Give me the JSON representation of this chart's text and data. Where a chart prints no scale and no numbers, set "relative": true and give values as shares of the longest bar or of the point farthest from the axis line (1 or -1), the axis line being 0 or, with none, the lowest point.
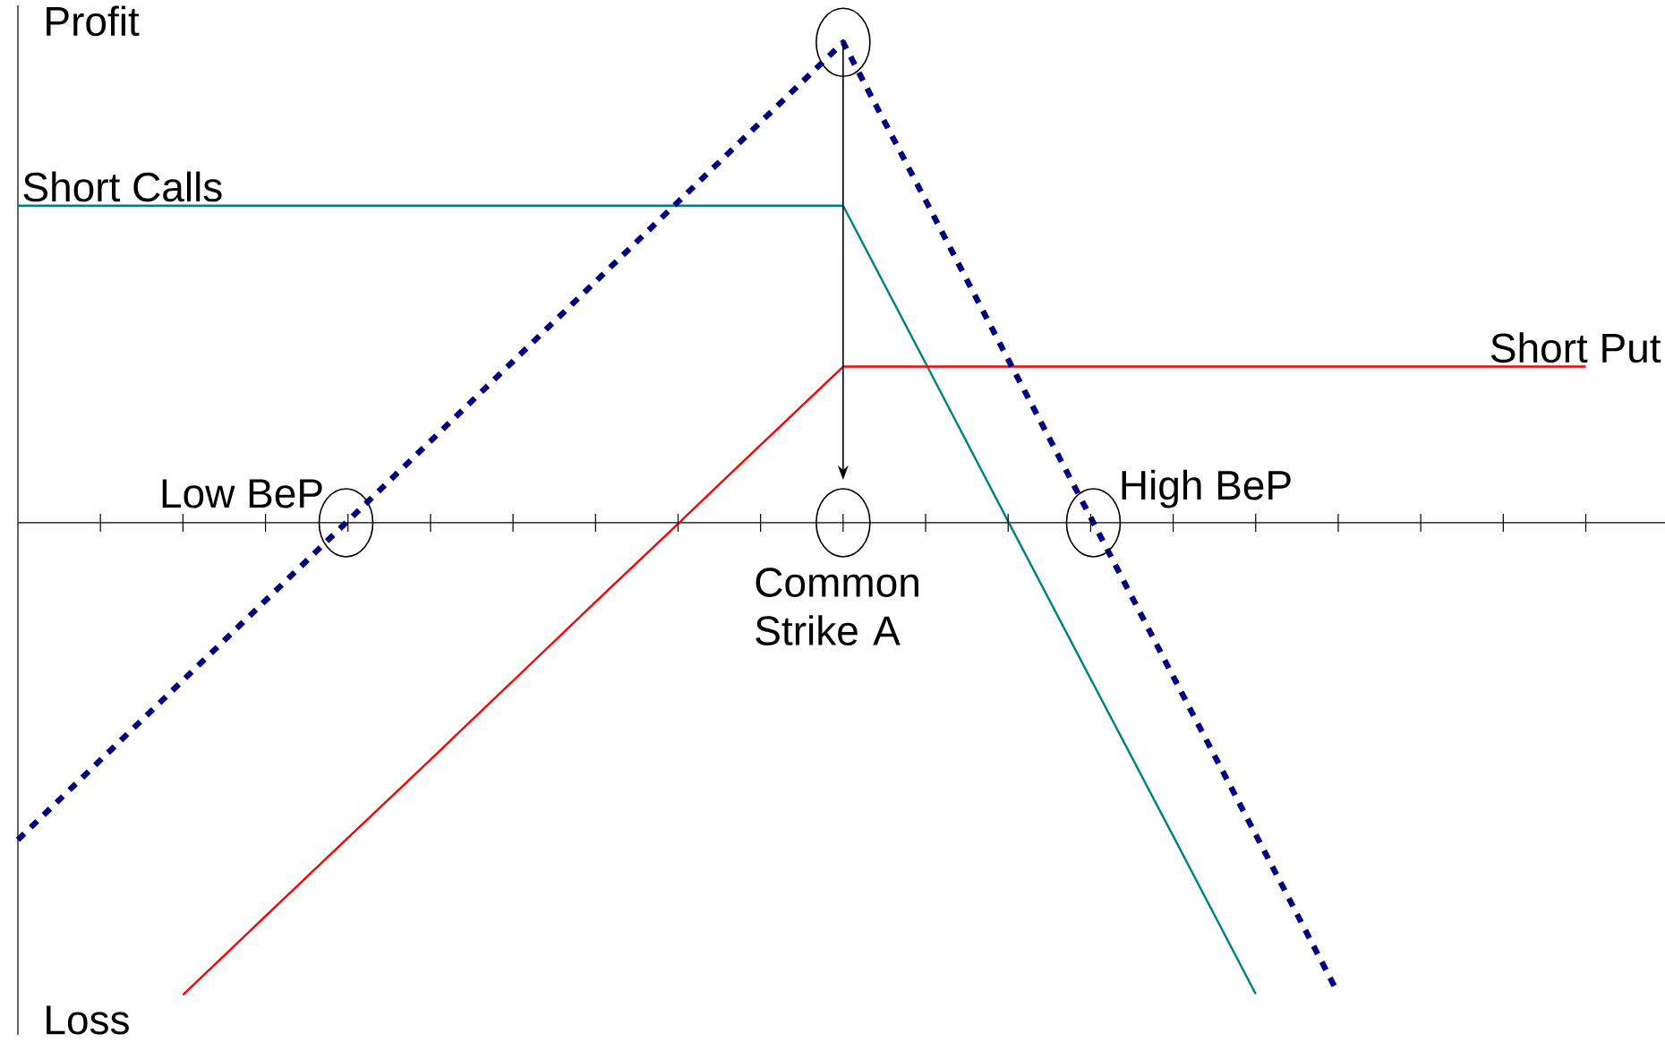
{
  "chart_data": {
    "type": "line",
    "relative": true,
    "categories": [
      null,
      null,
      null,
      null,
      null,
      null,
      null,
      null,
      null,
      null,
      null,
      null,
      null,
      null,
      null,
      null,
      null,
      null,
      null,
      null
    ],
    "series": [
      {
        "name": "Short Calls",
        "color": "#008080",
        "values": [
          0.66,
          0.66,
          0.66,
          0.66,
          0.66,
          0.66,
          0.66,
          0.66,
          0.66,
          0.66,
          0.66,
          0.332,
          0.003,
          -0.325,
          -0.652,
          -0.981,
          null,
          null,
          null,
          null
        ]
      },
      {
        "name": "Short Put",
        "color": "#ff0000",
        "values": [
          null,
          null,
          -0.983,
          -0.819,
          -0.656,
          -0.493,
          -0.329,
          -0.165,
          -0.002,
          0.162,
          0.325,
          0.325,
          0.325,
          0.325,
          0.325,
          0.325,
          0.325,
          0.325,
          0.325,
          0.325
        ]
      },
      {
        "color": "#000080",
        "line_style": "dashed",
        "values": [
          -0.66,
          -0.494,
          -0.328,
          -0.162,
          0.004,
          0.17,
          0.336,
          0.502,
          0.668,
          0.834,
          1,
          0.671,
          0.34,
          0.011,
          -0.32,
          -0.649,
          -0.98,
          null,
          null,
          null
        ]
      }
    ],
    "annotations": [
      "Profit",
      "Low BeP",
      "Common Strike A",
      "High BeP",
      "Loss"
    ]
  }
}
